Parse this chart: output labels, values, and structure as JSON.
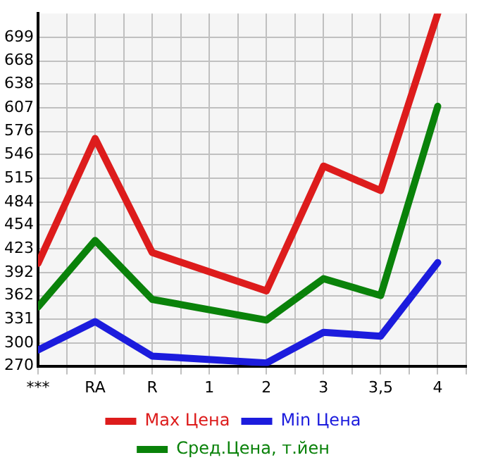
{
  "chart_data": {
    "type": "line",
    "categories": [
      "***",
      "RA",
      "R",
      "1",
      "2",
      "3",
      "3,5",
      "4"
    ],
    "series": [
      {
        "name": "Max Цена",
        "color": "#dd1c1c",
        "values": [
          404,
          567,
          418,
          null,
          368,
          531,
          499,
          730
        ]
      },
      {
        "name": "Min Цена",
        "color": "#1c1cdd",
        "values": [
          291,
          328,
          283,
          null,
          274,
          314,
          309,
          405
        ]
      },
      {
        "name": "Сред.Цена, т.йен",
        "color": "#0a820a",
        "values": [
          347,
          434,
          357,
          null,
          330,
          384,
          362,
          609
        ]
      }
    ],
    "ylim": [
      270,
      730
    ],
    "yticks": [
      270,
      300,
      331,
      362,
      392,
      423,
      454,
      484,
      515,
      546,
      576,
      607,
      638,
      668,
      699
    ],
    "grid": true,
    "legend": "bottom",
    "marker": "none",
    "line_style": "solid"
  }
}
